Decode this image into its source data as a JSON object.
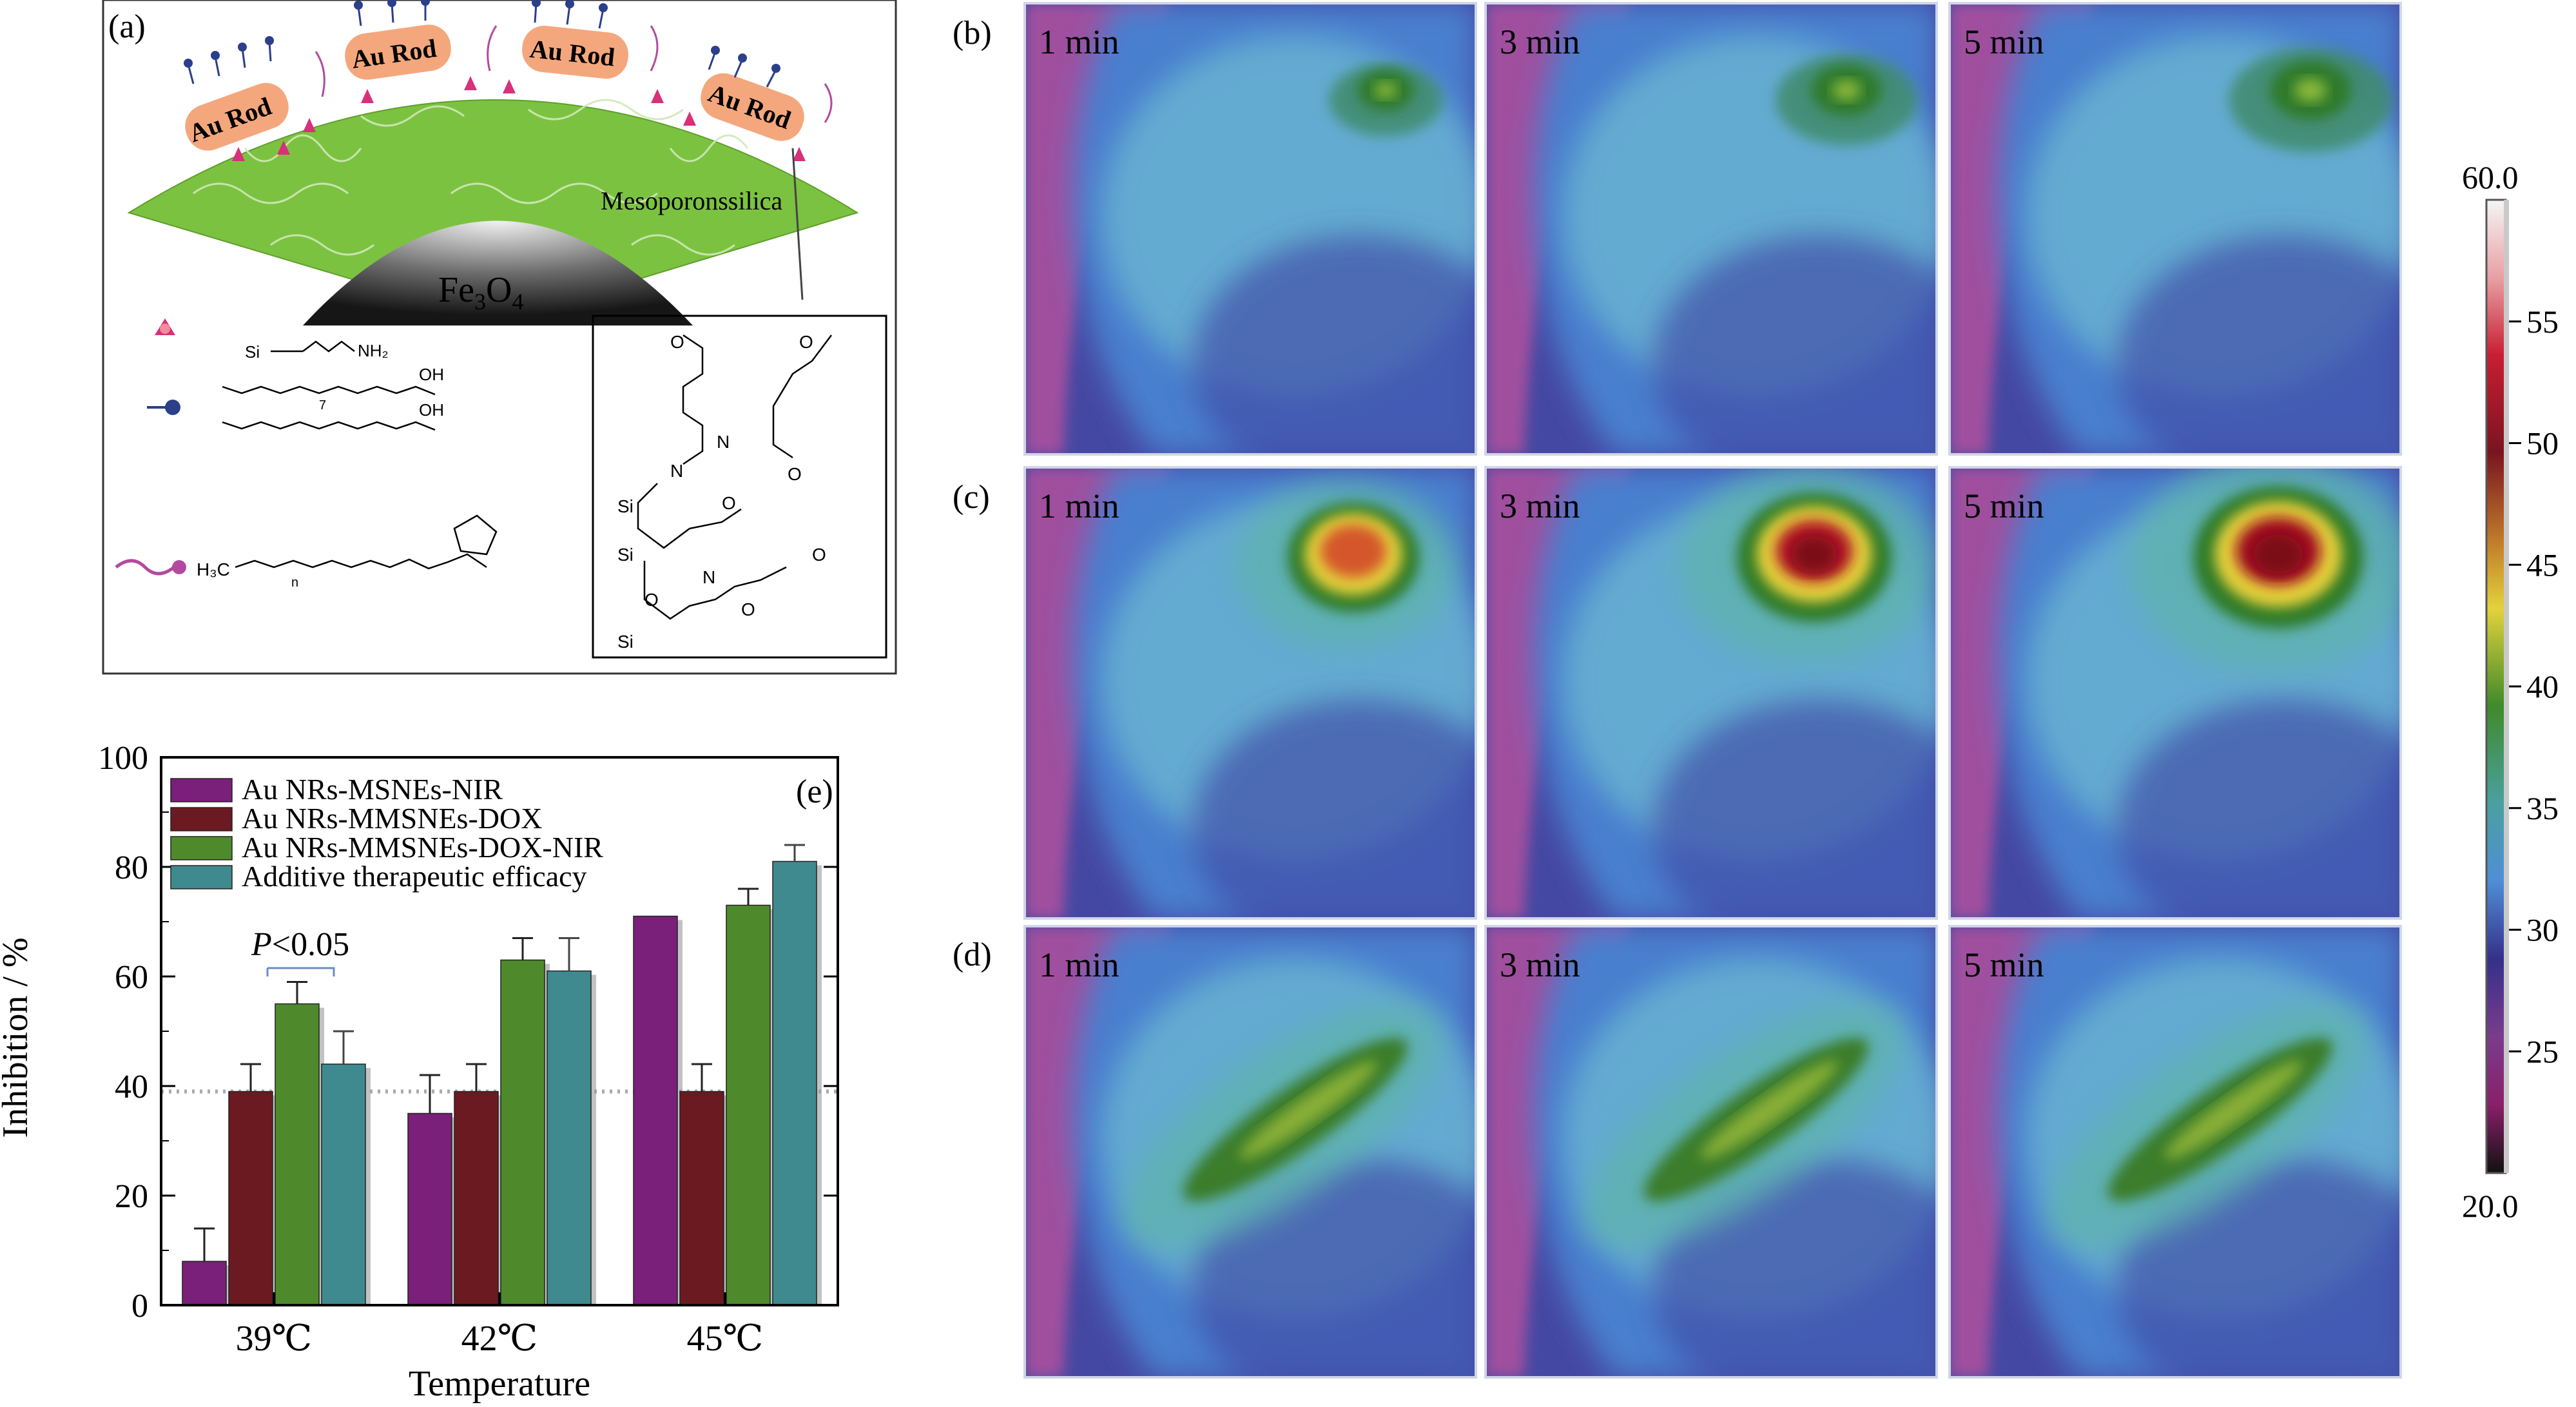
{
  "panel_labels": {
    "a": "(a)",
    "b": "(b)",
    "c": "(c)",
    "d": "(d)",
    "e": "(e)"
  },
  "schematic": {
    "rod_labels": [
      "Au Rod",
      "Au Rod",
      "Au Rod",
      "Au Rod"
    ],
    "silica_label": "Mesoporonssilica",
    "core_label": "Fe",
    "core_sub1": "3",
    "core_mid": "O",
    "core_sub2": "4",
    "legend_chem": {
      "amine": "NH₂",
      "acid1": "OH",
      "acid2": "OH",
      "peg_prefix": "H₃C",
      "n_sub": "n",
      "seven_sub": "7"
    },
    "structure_atoms": [
      "N",
      "O",
      "N",
      "O",
      "N",
      "O",
      "Si",
      "Si",
      "Si",
      "O",
      "O",
      "O",
      "O"
    ]
  },
  "thermal": {
    "time_labels": [
      "1 min",
      "3 min",
      "5 min"
    ],
    "rows": [
      "b",
      "c",
      "d"
    ],
    "colorbar": {
      "max_label": "60.0",
      "min_label": "20.0",
      "ticks": [
        55,
        50,
        45,
        40,
        35,
        30,
        25
      ],
      "min": 20,
      "max": 60
    }
  },
  "chart_data": {
    "type": "bar",
    "categories": [
      "39℃",
      "42℃",
      "45℃"
    ],
    "xlabel": "Temperature",
    "ylabel": "Inhibition / %",
    "ylim": [
      0,
      100
    ],
    "yticks": [
      0,
      20,
      40,
      60,
      80,
      100
    ],
    "reference_line": 39,
    "annotation": {
      "italic": "P",
      "text": "<0.05"
    },
    "legend_position": "top-left",
    "series": [
      {
        "name": "Au NRs-MSNEs-NIR",
        "color": "#7a1f7a",
        "values": [
          8,
          35,
          71
        ],
        "errors": [
          6,
          7,
          0
        ]
      },
      {
        "name": "Au NRs-MMSNEs-DOX",
        "color": "#6b1a22",
        "values": [
          39,
          39,
          39
        ],
        "errors": [
          5,
          5,
          5
        ]
      },
      {
        "name": "Au NRs-MMSNEs-DOX-NIR",
        "color": "#4e8a2c",
        "values": [
          55,
          63,
          73
        ],
        "errors": [
          4,
          4,
          3
        ]
      },
      {
        "name": "Additive therapeutic efficacy",
        "color": "#3f8a8e",
        "values": [
          44,
          61,
          81
        ],
        "errors": [
          6,
          6,
          3
        ]
      }
    ]
  }
}
